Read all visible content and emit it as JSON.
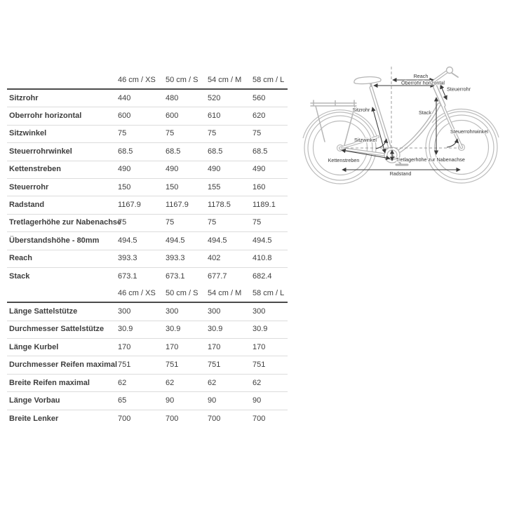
{
  "colors": {
    "table_rule_dark": "#4b4b4b",
    "table_rule_light": "#dcdcdc",
    "bike_outline": "#b6b6b6",
    "text": "#3e3e3e"
  },
  "geometry_table": {
    "columns": [
      "46 cm / XS",
      "50 cm / S",
      "54 cm / M",
      "58 cm / L"
    ],
    "rows": [
      {
        "label": "Sitzrohr",
        "values": [
          "440",
          "480",
          "520",
          "560"
        ]
      },
      {
        "label": "Oberrohr horizontal",
        "values": [
          "600",
          "600",
          "610",
          "620"
        ]
      },
      {
        "label": "Sitzwinkel",
        "values": [
          "75",
          "75",
          "75",
          "75"
        ]
      },
      {
        "label": "Steuerrohrwinkel",
        "values": [
          "68.5",
          "68.5",
          "68.5",
          "68.5"
        ]
      },
      {
        "label": "Kettenstreben",
        "values": [
          "490",
          "490",
          "490",
          "490"
        ]
      },
      {
        "label": "Steuerrohr",
        "values": [
          "150",
          "150",
          "155",
          "160"
        ]
      },
      {
        "label": "Radstand",
        "values": [
          "1167.9",
          "1167.9",
          "1178.5",
          "1189.1"
        ]
      },
      {
        "label": "Tretlagerhöhe zur Nabenachse",
        "values": [
          "75",
          "75",
          "75",
          "75"
        ]
      },
      {
        "label": "Überstandshöhe - 80mm",
        "values": [
          "494.5",
          "494.5",
          "494.5",
          "494.5"
        ]
      },
      {
        "label": "Reach",
        "values": [
          "393.3",
          "393.3",
          "402",
          "410.8"
        ]
      },
      {
        "label": "Stack",
        "values": [
          "673.1",
          "673.1",
          "677.7",
          "682.4"
        ]
      }
    ]
  },
  "components_table": {
    "columns": [
      "46 cm / XS",
      "50 cm / S",
      "54 cm / M",
      "58 cm / L"
    ],
    "rows": [
      {
        "label": "Länge Sattelstütze",
        "values": [
          "300",
          "300",
          "300",
          "300"
        ]
      },
      {
        "label": "Durchmesser Sattelstütze",
        "values": [
          "30.9",
          "30.9",
          "30.9",
          "30.9"
        ]
      },
      {
        "label": "Länge Kurbel",
        "values": [
          "170",
          "170",
          "170",
          "170"
        ]
      },
      {
        "label": "Durchmesser Reifen maximal",
        "values": [
          "751",
          "751",
          "751",
          "751"
        ]
      },
      {
        "label": "Breite Reifen maximal",
        "values": [
          "62",
          "62",
          "62",
          "62"
        ]
      },
      {
        "label": "Länge Vorbau",
        "values": [
          "65",
          "90",
          "90",
          "90"
        ]
      },
      {
        "label": "Breite Lenker",
        "values": [
          "700",
          "700",
          "700",
          "700"
        ]
      }
    ]
  },
  "diagram": {
    "labels": {
      "reach": "Reach",
      "oberrohr": "Oberrohr horizontal",
      "steuerrohr": "Steuerrohr",
      "stack": "Stack",
      "sitzrohr": "Sitzrohr",
      "sitzwinkel": "Sitzwinkel",
      "steuerrohrwinkel": "Steuerrohrwinkel",
      "kettenstreben": "Kettenstreben",
      "tretlagerhoehe": "Tretlagerhöhe zur Nabenachse",
      "radstand": "Radstand"
    }
  }
}
